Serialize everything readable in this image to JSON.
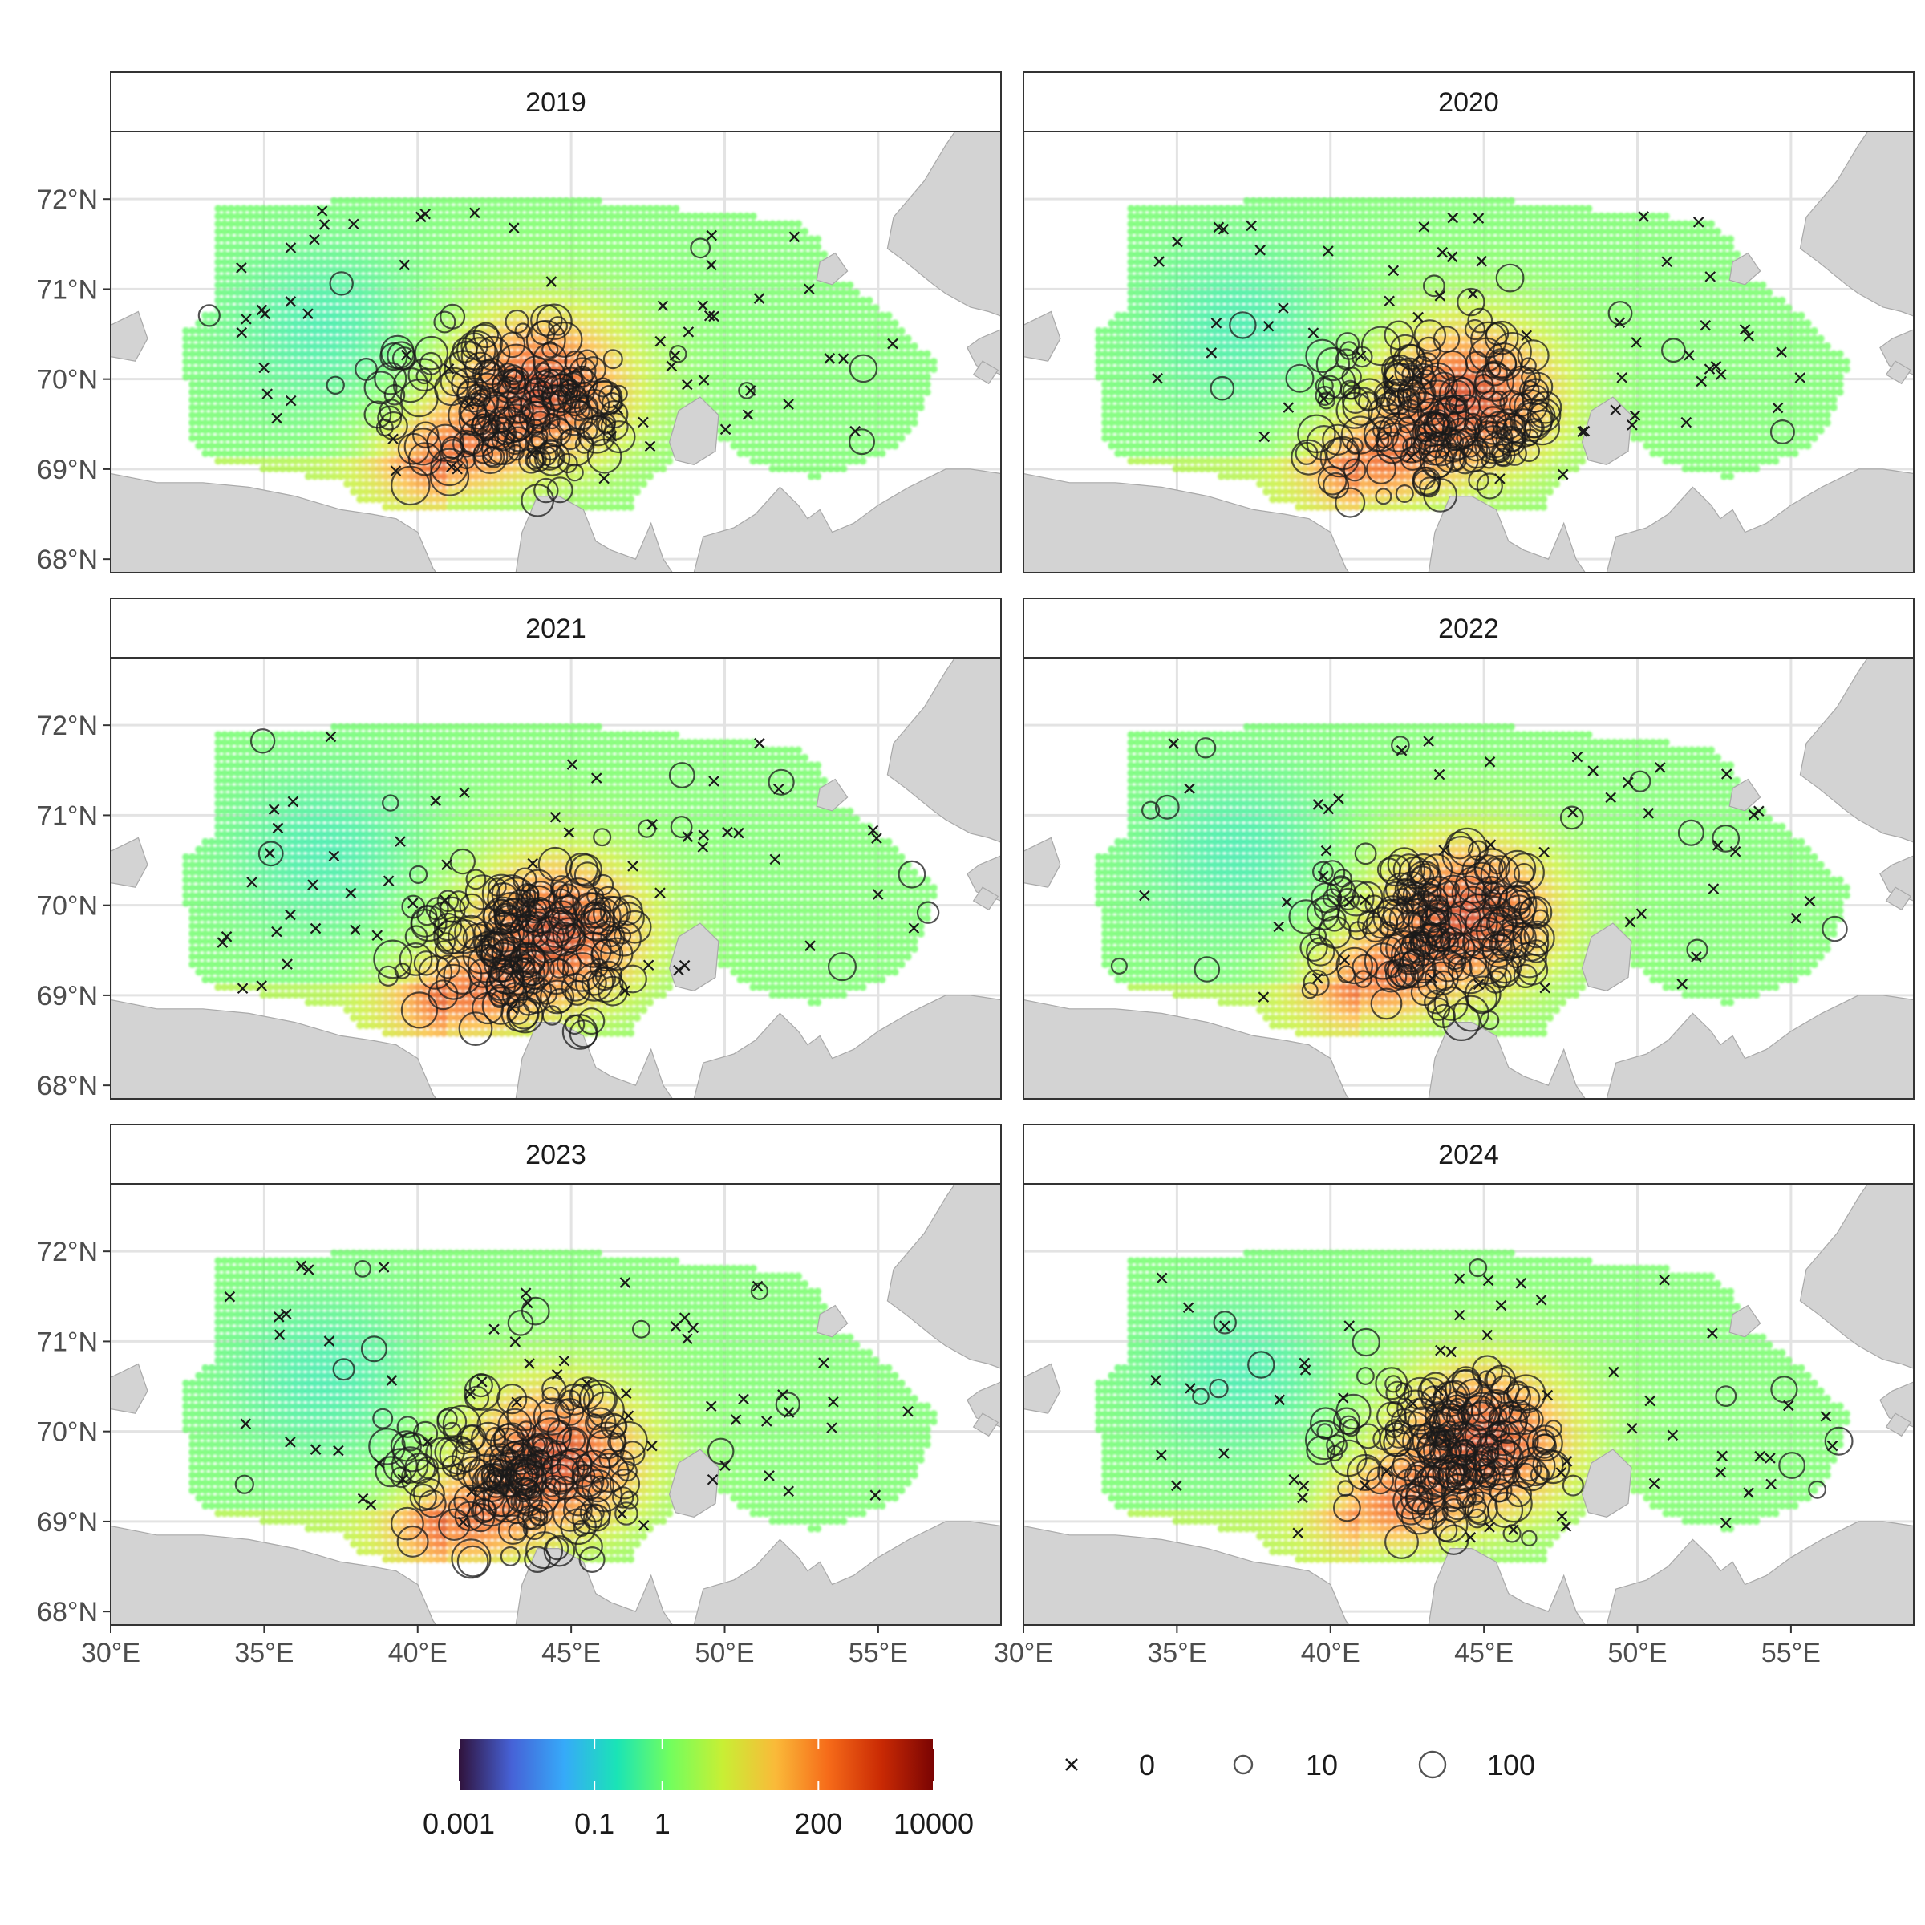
{
  "colors": {
    "land": "#d3d3d3",
    "land_edge": "#a9a9a9",
    "grid": "#e3e3e3",
    "panel_border": "#333333",
    "strip_fill": "#ffffff",
    "marker": "#1a1a1a"
  },
  "axes": {
    "lon_range": [
      30,
      59
    ],
    "lat_range": [
      67.85,
      72.75
    ],
    "lon_ticks": [
      30,
      35,
      40,
      45,
      50,
      55
    ],
    "lat_ticks": [
      68,
      69,
      70,
      71,
      72
    ],
    "lon_tick_labels": [
      "30°E",
      "35°E",
      "40°E",
      "45°E",
      "50°E",
      "55°E"
    ],
    "lat_tick_labels": [
      "68°N",
      "69°N",
      "70°N",
      "71°N",
      "72°N"
    ]
  },
  "panels": [
    {
      "year": "2019",
      "hotspot": {
        "lon": 44.0,
        "lat": 69.9
      }
    },
    {
      "year": "2020",
      "hotspot": {
        "lon": 44.5,
        "lat": 69.8
      }
    },
    {
      "year": "2021",
      "hotspot": {
        "lon": 44.5,
        "lat": 69.7
      }
    },
    {
      "year": "2022",
      "hotspot": {
        "lon": 44.5,
        "lat": 69.9
      }
    },
    {
      "year": "2023",
      "hotspot": {
        "lon": 44.5,
        "lat": 69.7
      }
    },
    {
      "year": "2024",
      "hotspot": {
        "lon": 45.0,
        "lat": 69.9
      }
    }
  ],
  "color_legend": {
    "scale": "log",
    "range": [
      0.001,
      10000
    ],
    "tick_values": [
      0.001,
      0.1,
      1,
      200,
      10000
    ],
    "tick_labels": [
      "0.001",
      "0.1",
      "1",
      "200",
      "10000"
    ],
    "stops": [
      "#30123b",
      "#4662d7",
      "#36aaf9",
      "#1ae4b6",
      "#72fe5e",
      "#c8ef34",
      "#faba39",
      "#f66b19",
      "#ca2a04",
      "#7a0403"
    ]
  },
  "size_legend": {
    "entries": [
      {
        "label": "0",
        "symbol": "cross"
      },
      {
        "label": "10",
        "symbol": "circle-small"
      },
      {
        "label": "100",
        "symbol": "circle-large"
      }
    ]
  }
}
